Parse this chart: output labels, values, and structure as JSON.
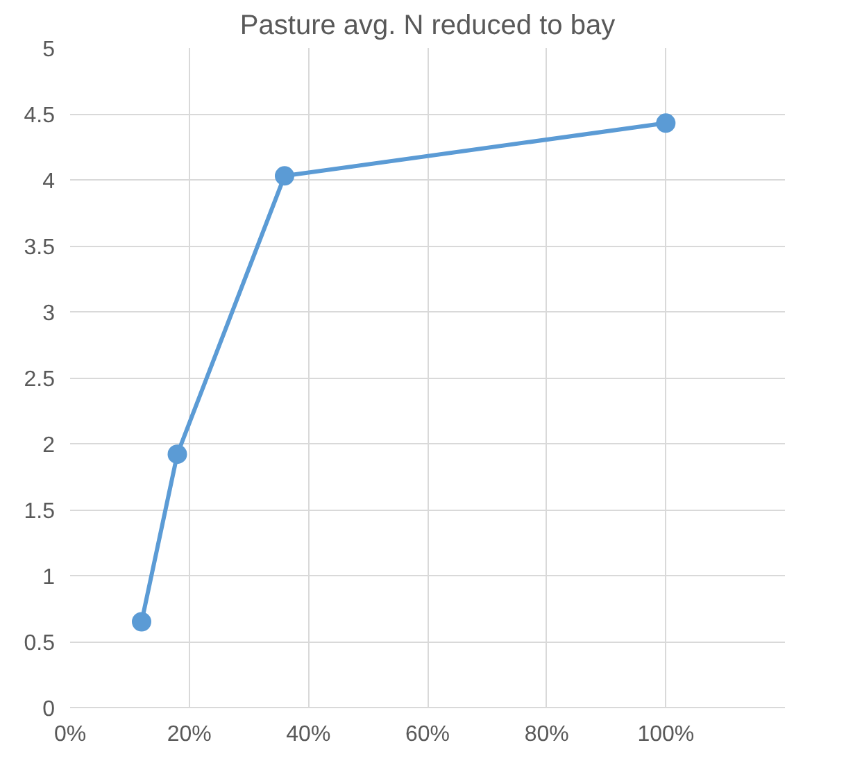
{
  "chart_data": {
    "type": "line",
    "title": "Pasture avg. N reduced to bay",
    "x": [
      12,
      18,
      36,
      100
    ],
    "series": [
      {
        "color": "#5b9bd5",
        "values": [
          0.65,
          1.92,
          4.03,
          4.43
        ]
      }
    ],
    "xlim": [
      0,
      120
    ],
    "xticks": [
      {
        "value": 0,
        "label": "0%"
      },
      {
        "value": 20,
        "label": "20%"
      },
      {
        "value": 40,
        "label": "40%"
      },
      {
        "value": 60,
        "label": "60%"
      },
      {
        "value": 80,
        "label": "80%"
      },
      {
        "value": 100,
        "label": "100%"
      }
    ],
    "ylim": [
      0,
      5
    ],
    "yticks": [
      {
        "value": 0,
        "label": "0"
      },
      {
        "value": 0.5,
        "label": "0.5"
      },
      {
        "value": 1,
        "label": "1"
      },
      {
        "value": 1.5,
        "label": "1.5"
      },
      {
        "value": 2,
        "label": "2"
      },
      {
        "value": 2.5,
        "label": "2.5"
      },
      {
        "value": 3,
        "label": "3"
      },
      {
        "value": 3.5,
        "label": "3.5"
      },
      {
        "value": 4,
        "label": "4"
      },
      {
        "value": 4.5,
        "label": "4.5"
      },
      {
        "value": 5,
        "label": "5"
      }
    ],
    "grid": true,
    "marker": "circle",
    "line_style": "solid"
  }
}
